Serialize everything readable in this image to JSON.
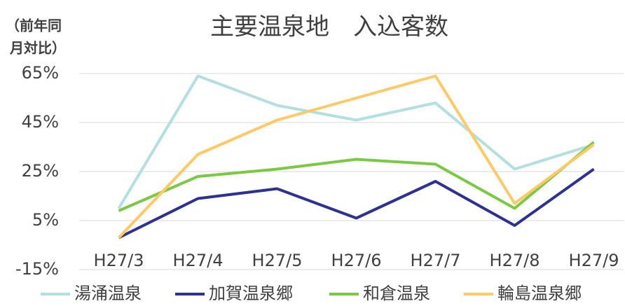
{
  "chart_data": {
    "type": "line",
    "title": "主要温泉地　入込客数",
    "y_label_lines": [
      "（前年同",
      "月対比）"
    ],
    "categories": [
      "H27/3",
      "H27/4",
      "H27/5",
      "H27/6",
      "H27/7",
      "H27/8",
      "H27/9"
    ],
    "series": [
      {
        "name": "湯涌温泉",
        "color": "#b4dfe0",
        "values": [
          10,
          64,
          52,
          46,
          53,
          26,
          36
        ]
      },
      {
        "name": "加賀温泉郷",
        "color": "#2e3192",
        "values": [
          -2,
          14,
          18,
          6,
          21,
          3,
          26
        ]
      },
      {
        "name": "和倉温泉",
        "color": "#7ac943",
        "values": [
          9,
          23,
          26,
          30,
          28,
          10,
          37
        ]
      },
      {
        "name": "輪島温泉郷",
        "color": "#ffc966",
        "values": [
          -2,
          32,
          46,
          55,
          64,
          12,
          36
        ]
      }
    ],
    "ylim": [
      -15,
      65
    ],
    "yticks": [
      {
        "value": -15,
        "label": "-15%"
      },
      {
        "value": 5,
        "label": "5%"
      },
      {
        "value": 25,
        "label": "25%"
      },
      {
        "value": 45,
        "label": "45%"
      },
      {
        "value": 65,
        "label": "65%"
      }
    ],
    "grid": true,
    "legend": "bottom"
  }
}
